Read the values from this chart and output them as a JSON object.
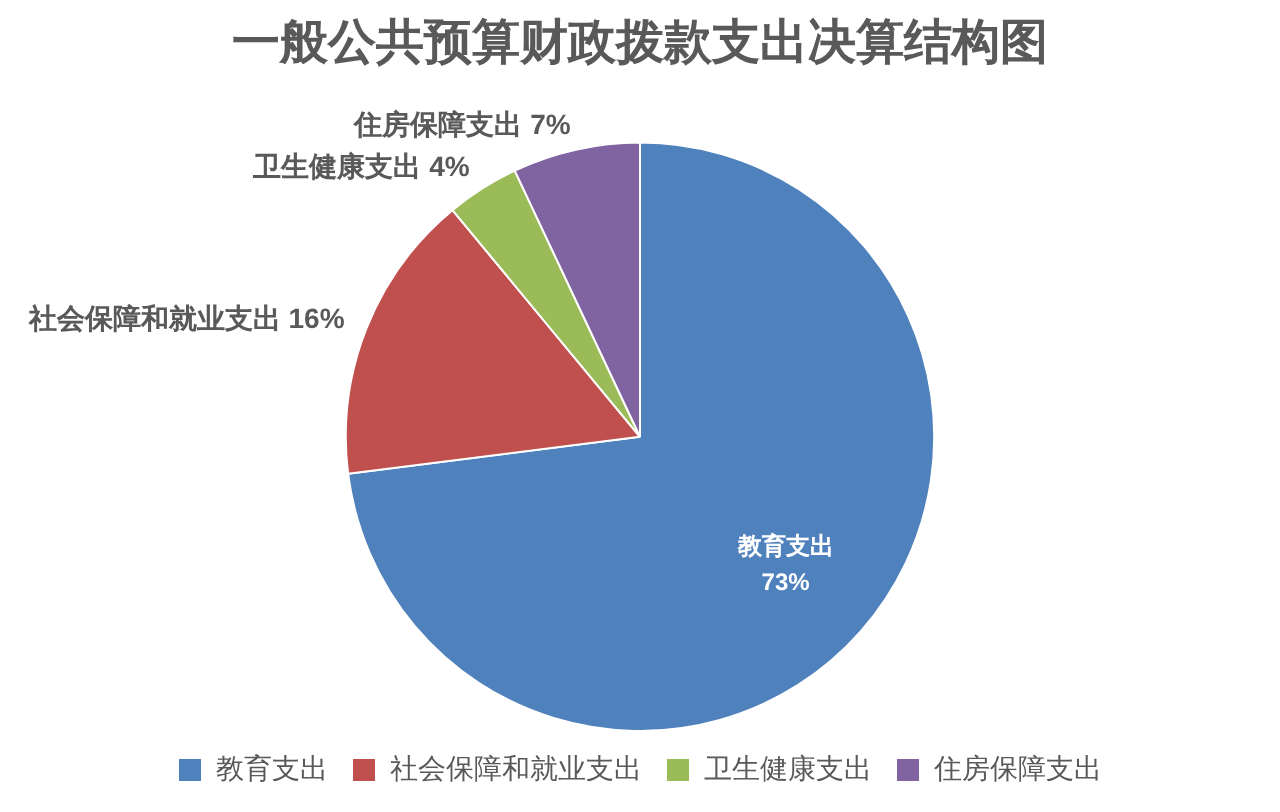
{
  "chart_data": {
    "type": "pie",
    "title": "一般公共预算财政拨款支出决算结构图",
    "categories": [
      "教育支出",
      "社会保障和就业支出",
      "卫生健康支出",
      "住房保障支出"
    ],
    "values": [
      73,
      16,
      4,
      7
    ],
    "colors": [
      "#4f81bd",
      "#c0504d",
      "#9bbb59",
      "#8064a2"
    ],
    "value_labels": [
      "73%",
      "16%",
      "4%",
      "7%"
    ],
    "legend": "bottom"
  }
}
